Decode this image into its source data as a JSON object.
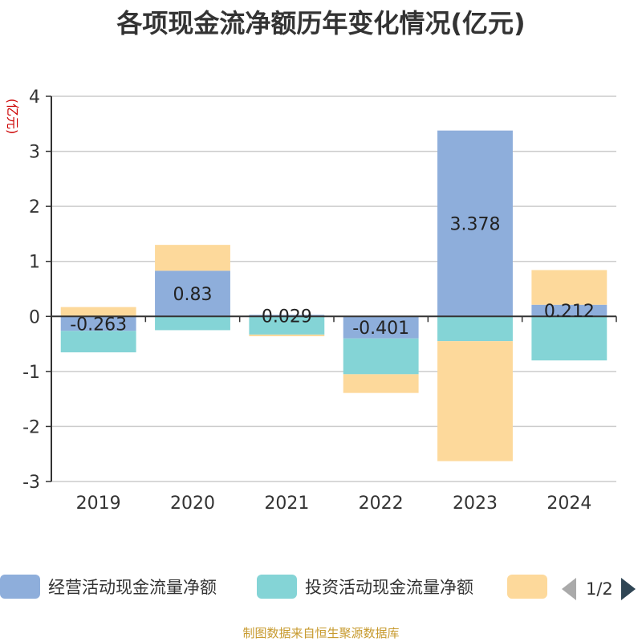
{
  "title": "各项现金流净额历年变化情况(亿元)",
  "source": "制图数据来自恒生聚源数据库",
  "legend_page": "1/2",
  "colors": {
    "operating": "#8eaedb",
    "investing": "#84d4d6",
    "financing": "#fdd99b",
    "axis": "#333333",
    "grid": "#cccccc",
    "ylabel": "#cc0000"
  },
  "chart_data": {
    "type": "bar",
    "stacked": true,
    "title": "各项现金流净额历年变化情况(亿元)",
    "ylabel": "(亿元)",
    "xlabel": "",
    "ylim": [
      -3,
      4
    ],
    "yticks": [
      4,
      3,
      2,
      1,
      0,
      -1,
      -2,
      -3
    ],
    "grid": true,
    "legend_position": "bottom",
    "categories": [
      "2019",
      "2020",
      "2021",
      "2022",
      "2023",
      "2024"
    ],
    "series": [
      {
        "name": "经营活动现金流量净额",
        "values": [
          -0.263,
          0.83,
          0.029,
          -0.401,
          3.378,
          0.212
        ],
        "labels": [
          "-0.263",
          "0.83",
          "0.029",
          "-0.401",
          "3.378",
          "0.212"
        ]
      },
      {
        "name": "投资活动现金流量净额",
        "values": [
          -0.39,
          -0.25,
          -0.33,
          -0.65,
          -0.45,
          -0.8
        ]
      },
      {
        "name": "",
        "values": [
          0.17,
          0.47,
          -0.03,
          -0.34,
          -2.18,
          0.63
        ]
      }
    ]
  }
}
